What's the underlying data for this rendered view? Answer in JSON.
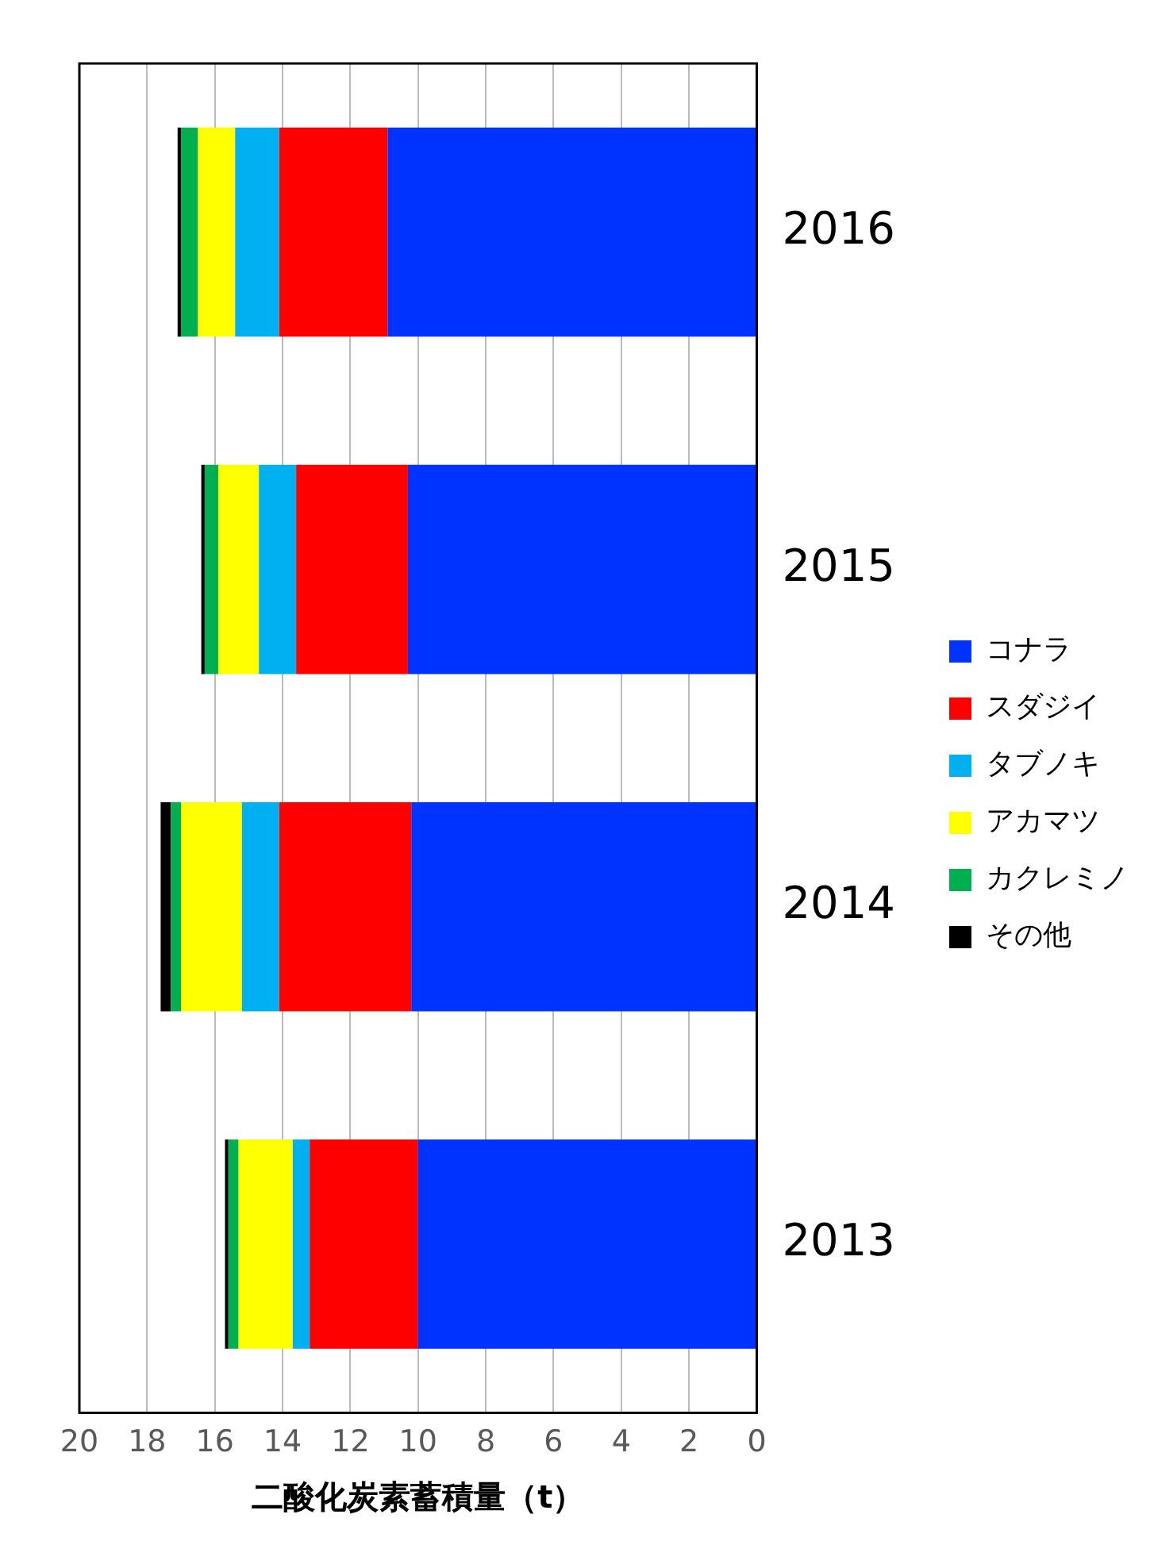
{
  "chart_data": {
    "type": "bar",
    "stacked": true,
    "orientation": "horizontal",
    "xlabel": "二酸化炭素蓄積量（t）",
    "categories": [
      "2016",
      "2015",
      "2014",
      "2013"
    ],
    "xlim": [
      20,
      0
    ],
    "xticks": [
      0,
      2,
      4,
      6,
      8,
      10,
      12,
      14,
      16,
      18,
      20
    ],
    "grid": "x",
    "legend": "right",
    "series": [
      {
        "name": "コナラ",
        "color": "#0033ff",
        "values": [
          10.9,
          10.3,
          10.2,
          10.0
        ]
      },
      {
        "name": "スダジイ",
        "color": "#ff0000",
        "values": [
          3.2,
          3.3,
          3.9,
          3.2
        ]
      },
      {
        "name": "タブノキ",
        "color": "#00b0f0",
        "values": [
          1.3,
          1.1,
          1.1,
          0.5
        ]
      },
      {
        "name": "アカマツ",
        "color": "#ffff00",
        "values": [
          1.1,
          1.2,
          1.8,
          1.6
        ]
      },
      {
        "name": "カクレミノ",
        "color": "#00b050",
        "values": [
          0.5,
          0.4,
          0.3,
          0.3
        ]
      },
      {
        "name": "その他",
        "color": "#000000",
        "values": [
          0.1,
          0.1,
          0.3,
          0.1
        ]
      }
    ]
  }
}
